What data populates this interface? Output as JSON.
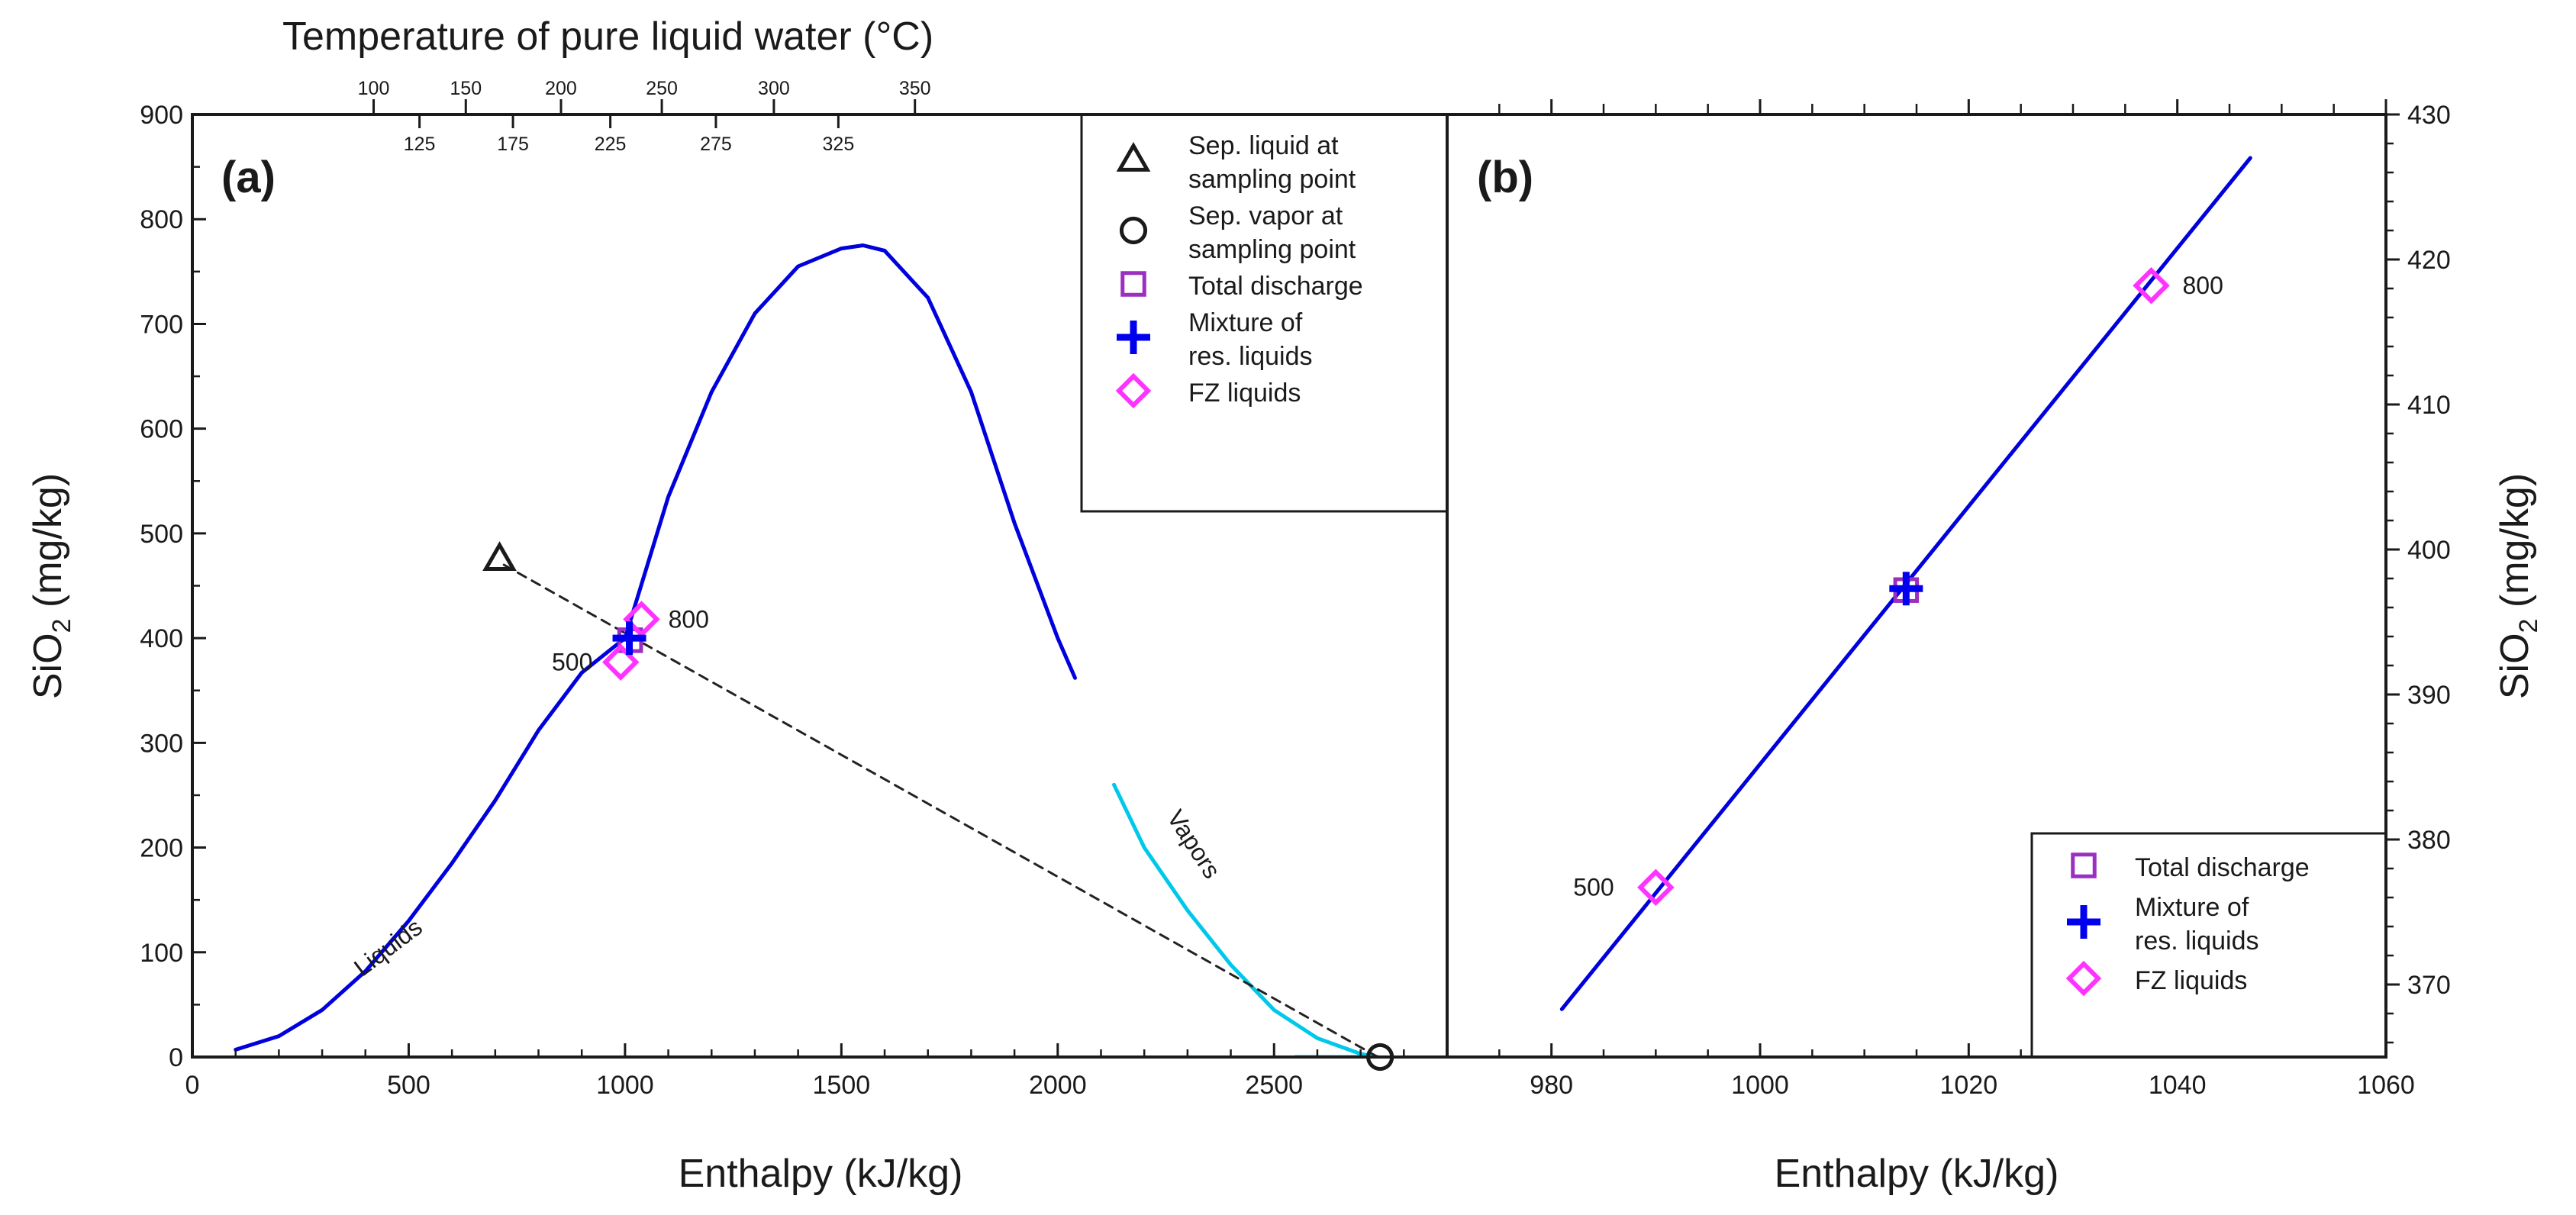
{
  "chart_data": [
    {
      "type": "line",
      "panel_label": "(a)",
      "xlabel": "Enthalpy (kJ/kg)",
      "ylabel": "SiO2 (mg/kg)",
      "ylabel_main": "SiO",
      "ylabel_sub": "2",
      "ylabel_unit": " (mg/kg)",
      "xlim": [
        0,
        2900
      ],
      "ylim": [
        0,
        900
      ],
      "xticks": [
        0,
        500,
        1000,
        1500,
        2000,
        2500
      ],
      "yticks": [
        0,
        100,
        200,
        300,
        400,
        500,
        600,
        700,
        800,
        900
      ],
      "top_axis": {
        "title": "Temperature of pure liquid water (°C)",
        "ticks_upper": [
          {
            "label": "100",
            "enthalpy": 419
          },
          {
            "label": "150",
            "enthalpy": 632
          },
          {
            "label": "200",
            "enthalpy": 852
          },
          {
            "label": "250",
            "enthalpy": 1085
          },
          {
            "label": "300",
            "enthalpy": 1344
          },
          {
            "label": "350",
            "enthalpy": 1670
          }
        ],
        "ticks_lower": [
          {
            "label": "125",
            "enthalpy": 525
          },
          {
            "label": "175",
            "enthalpy": 741
          },
          {
            "label": "225",
            "enthalpy": 966
          },
          {
            "label": "275",
            "enthalpy": 1210
          },
          {
            "label": "325",
            "enthalpy": 1493
          }
        ]
      },
      "series": [
        {
          "key": "liquids",
          "label": "Liquids",
          "color": "#0000dd",
          "x": [
            100,
            200,
            300,
            400,
            500,
            600,
            700,
            800,
            900,
            1000,
            1100,
            1200,
            1300,
            1400,
            1500,
            1550,
            1600,
            1700,
            1800,
            1900,
            2000,
            2040
          ],
          "y": [
            7,
            20,
            45,
            82,
            130,
            185,
            245,
            312,
            367,
            400,
            535,
            635,
            710,
            755,
            772,
            775,
            770,
            725,
            635,
            510,
            400,
            362
          ]
        },
        {
          "key": "vapors",
          "label": "Vapors",
          "color": "#00c8e8",
          "x": [
            2130,
            2200,
            2300,
            2400,
            2500,
            2600,
            2700,
            2740
          ],
          "y": [
            260,
            200,
            140,
            88,
            45,
            18,
            3,
            0
          ]
        },
        {
          "key": "vapor_baseline",
          "color": "#00c8e8",
          "x": [
            2550,
            2740
          ],
          "y": [
            0,
            0
          ]
        },
        {
          "key": "separation_line",
          "style": "dashed",
          "color": "#222222",
          "x": [
            720,
            2740
          ],
          "y": [
            470,
            0
          ]
        }
      ],
      "points": [
        {
          "key": "sep_liquid",
          "marker": "triangle",
          "x": 710,
          "y": 475
        },
        {
          "key": "sep_vapor",
          "marker": "circle",
          "x": 2745,
          "y": 0
        },
        {
          "key": "total_discharge",
          "marker": "square",
          "x": 1012,
          "y": 398
        },
        {
          "key": "mixture",
          "marker": "plus",
          "x": 1010,
          "y": 400
        },
        {
          "key": "fz_500",
          "marker": "diamond",
          "x": 990,
          "y": 377
        },
        {
          "key": "fz_800",
          "marker": "diamond",
          "x": 1038,
          "y": 418
        }
      ],
      "annotations": [
        {
          "text": "800",
          "x": 1100,
          "y": 418
        },
        {
          "text": "500",
          "x": 925,
          "y": 377
        }
      ],
      "legend": {
        "position": "top-right",
        "entries": [
          {
            "marker": "triangle",
            "color": "#1a1a1a",
            "lines": [
              "Sep. liquid at",
              "sampling point"
            ]
          },
          {
            "marker": "circle",
            "color": "#1a1a1a",
            "lines": [
              "Sep. vapor at",
              "sampling point"
            ]
          },
          {
            "marker": "square",
            "color": "#9b2fc0",
            "lines": [
              "Total discharge"
            ]
          },
          {
            "marker": "plus",
            "color": "#0000ee",
            "lines": [
              "Mixture of",
              "res. liquids"
            ]
          },
          {
            "marker": "diamond",
            "color": "#ff33ff",
            "lines": [
              "FZ liquids"
            ]
          }
        ]
      }
    },
    {
      "type": "line",
      "panel_label": "(b)",
      "xlabel": "Enthalpy (kJ/kg)",
      "ylabel": "SiO2 (mg/kg)",
      "ylabel_main": "SiO",
      "ylabel_sub": "2",
      "ylabel_unit": " (mg/kg)",
      "xlim": [
        970,
        1060
      ],
      "ylim": [
        365,
        430
      ],
      "xticks": [
        980,
        1000,
        1020,
        1040,
        1060
      ],
      "yticks": [
        370,
        380,
        390,
        400,
        410,
        420,
        430
      ],
      "yaxis_side": "right",
      "series": [
        {
          "key": "liquids_zoom",
          "color": "#0000dd",
          "x": [
            981,
            1047
          ],
          "y": [
            368.3,
            427
          ]
        }
      ],
      "points": [
        {
          "key": "total_discharge",
          "marker": "square",
          "x": 1014,
          "y": 397.2
        },
        {
          "key": "mixture",
          "marker": "plus",
          "x": 1014,
          "y": 397.3
        },
        {
          "key": "fz_500",
          "marker": "diamond",
          "x": 990,
          "y": 376.7
        },
        {
          "key": "fz_800",
          "marker": "diamond",
          "x": 1037.5,
          "y": 418.2
        }
      ],
      "annotations": [
        {
          "text": "800",
          "x": 1040.5,
          "y": 418.2
        },
        {
          "text": "500",
          "x": 986,
          "y": 376.7
        }
      ],
      "legend": {
        "position": "bottom-right",
        "entries": [
          {
            "marker": "square",
            "color": "#9b2fc0",
            "lines": [
              "Total discharge"
            ]
          },
          {
            "marker": "plus",
            "color": "#0000ee",
            "lines": [
              "Mixture of",
              "res. liquids"
            ]
          },
          {
            "marker": "diamond",
            "color": "#ff33ff",
            "lines": [
              "FZ liquids"
            ]
          }
        ]
      }
    }
  ]
}
